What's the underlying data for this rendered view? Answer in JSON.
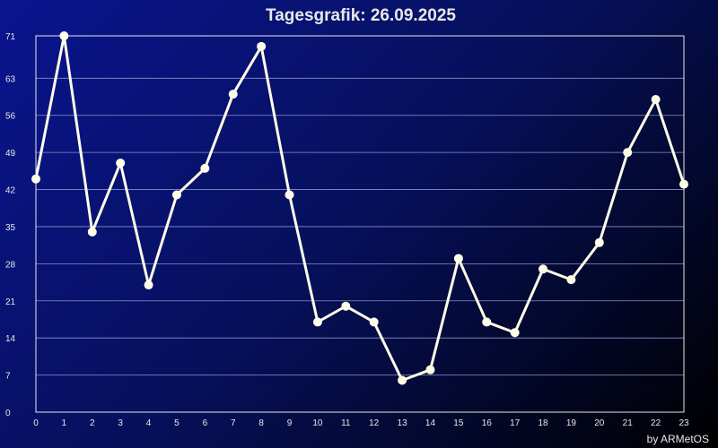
{
  "chart_data": {
    "type": "line",
    "title": "Tagesgrafik: 26.09.2025",
    "xlabel": "",
    "ylabel": "",
    "x": [
      0,
      1,
      2,
      3,
      4,
      5,
      6,
      7,
      8,
      9,
      10,
      11,
      12,
      13,
      14,
      15,
      16,
      17,
      18,
      19,
      20,
      21,
      22,
      23
    ],
    "series": [
      {
        "values": [
          44,
          71,
          34,
          47,
          24,
          41,
          46,
          60,
          69,
          41,
          17,
          20,
          17,
          6,
          8,
          29,
          17,
          15,
          27,
          25,
          32,
          49,
          59,
          43
        ]
      }
    ],
    "xlim": [
      0,
      23
    ],
    "ylim": [
      0,
      71
    ],
    "yticks": [
      0,
      7,
      14,
      21,
      28,
      35,
      42,
      49,
      56,
      63,
      71
    ],
    "xticks": [
      0,
      1,
      2,
      3,
      4,
      5,
      6,
      7,
      8,
      9,
      10,
      11,
      12,
      13,
      14,
      15,
      16,
      17,
      18,
      19,
      20,
      21,
      22,
      23
    ],
    "grid": true,
    "colors": {
      "line": "#fffde8",
      "marker": "#fffde8",
      "grid": "#8a93c8",
      "axis": "#e8e8e8",
      "text": "#e8e8e8",
      "title": "#e8e8e8"
    }
  },
  "footer": {
    "credit": "by ARMetOS"
  }
}
